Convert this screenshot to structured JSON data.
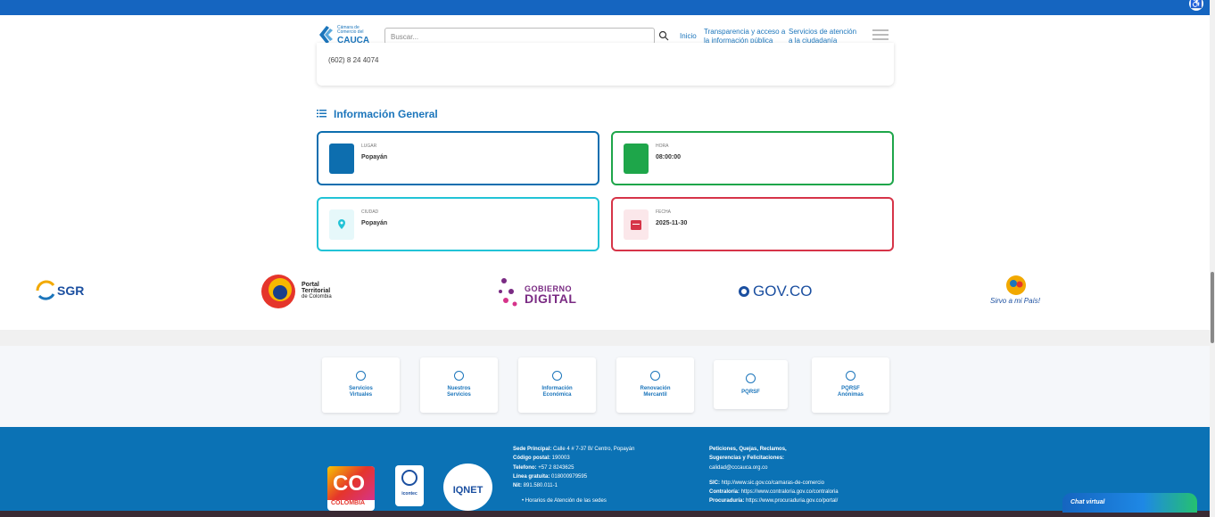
{
  "header": {
    "logo": {
      "small": "Cámara de Comercio del",
      "big": "CAUCA"
    },
    "search_placeholder": "Buscar...",
    "nav": [
      "Inicio",
      "Transparencia y acceso a la información pública",
      "Servicios de atención a la ciudadanía"
    ]
  },
  "contact_card": {
    "phone": "(602) 8 24 4074"
  },
  "info": {
    "title": "Información General",
    "cards": [
      {
        "label": "LUGAR",
        "value": "Popayán"
      },
      {
        "label": "HORA",
        "value": "08:00:00"
      },
      {
        "label": "CIUDAD",
        "value": "Popayán"
      },
      {
        "label": "FECHA",
        "value": "2025-11-30"
      }
    ]
  },
  "partners": [
    "SGR",
    {
      "title": "Portal",
      "line2": "Territorial",
      "line3": "de Colombia"
    },
    {
      "top": "GOBIERNO",
      "bottom": "DIGITAL"
    },
    "GOV.CO",
    "Sirvo a mi País!"
  ],
  "quick_links": [
    "Servicios Virtuales",
    "Nuestros Servicios",
    "Información Económica",
    "Renovación Mercantil",
    "PQRSF",
    "PQRSF Anónimas"
  ],
  "footer": {
    "badges": {
      "co": "CO",
      "colombia": "COLOMBIA",
      "icontec": "icontec",
      "iqnet": "IQNET"
    },
    "left": [
      {
        "label": "Sede Principal:",
        "value": "Calle 4 # 7-37 B/ Centro, Popayán"
      },
      {
        "label": "Código postal:",
        "value": "190003"
      },
      {
        "label": "Telefono:",
        "value": "+57 2 8243625"
      },
      {
        "label": "Línea gratuita:",
        "value": "018000979595"
      },
      {
        "label": "Nit:",
        "value": "891.580.011-1"
      }
    ],
    "hours": "Horarios de Atención de las sedes",
    "pqrs": {
      "label": "Peticiones, Quejas, Reclamos, Sugerencias y Felicitaciones:",
      "value": "calidad@cccauca.org.co"
    },
    "right": [
      {
        "label": "SIC:",
        "value": "http://www.sic.gov.co/camaras-de-comercio"
      },
      {
        "label": "Contraloría:",
        "value": "https://www.contraloria.gov.co/contraloria"
      },
      {
        "label": "Procuraduría:",
        "value": "https://www.procuraduria.gov.co/portal/"
      }
    ]
  },
  "chat": "Chat virtual"
}
